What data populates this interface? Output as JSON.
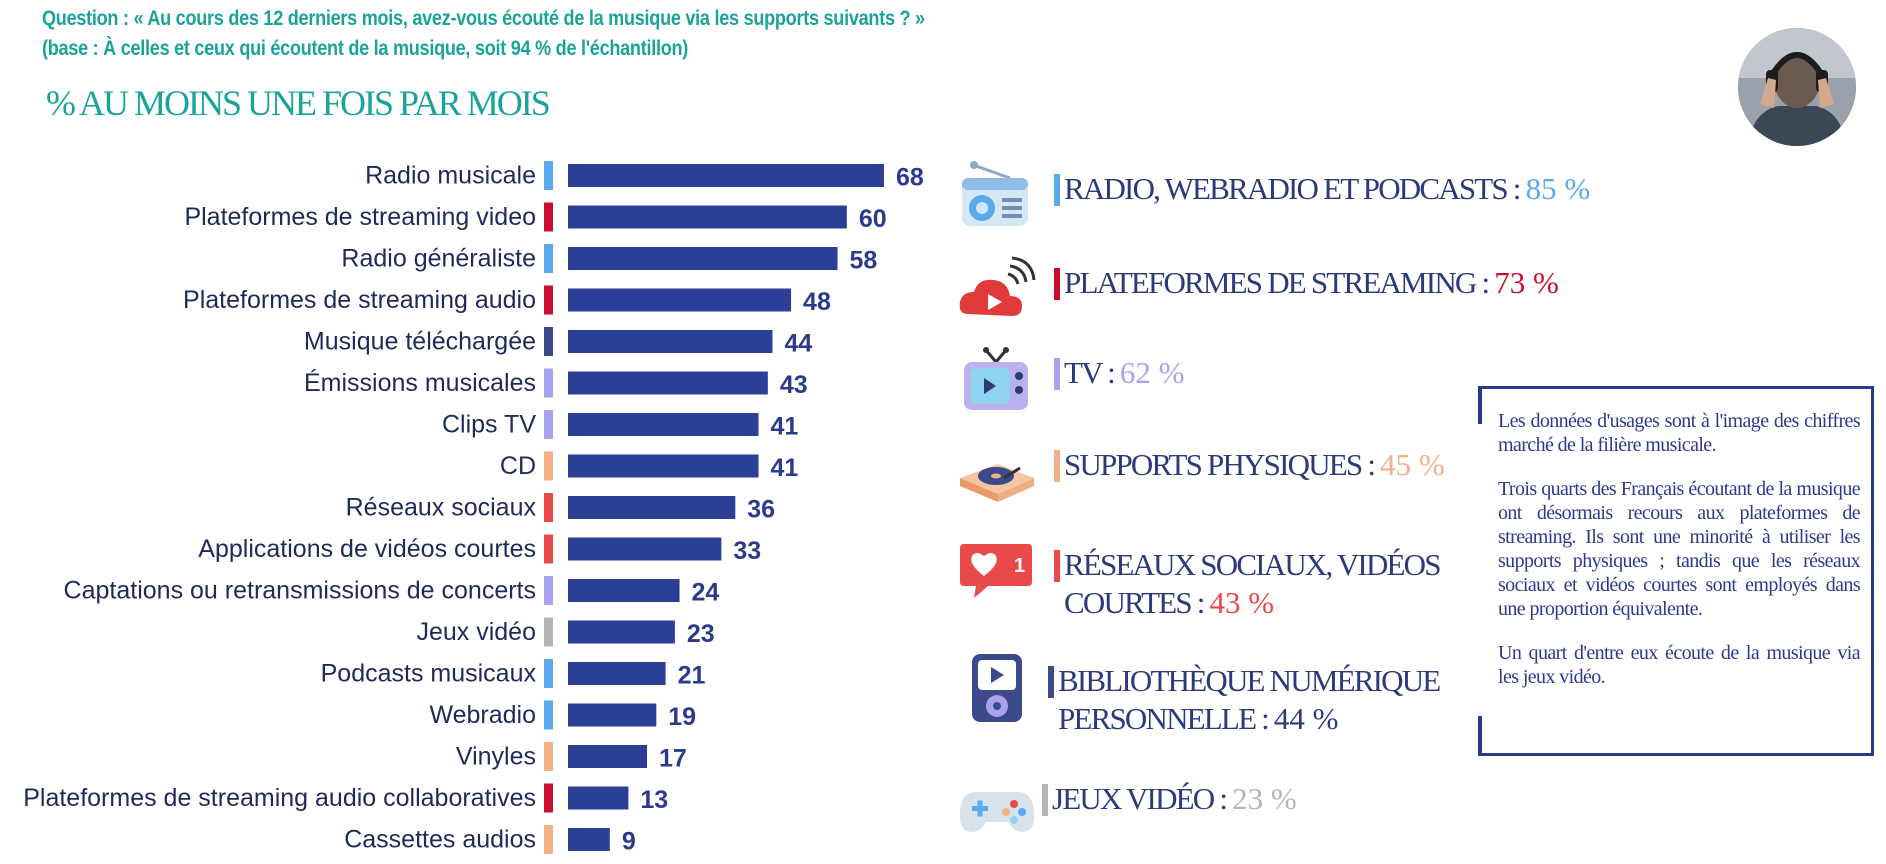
{
  "header": {
    "question_line1": "Question : « Au cours des 12 derniers mois, avez-vous écouté de la musique via les supports suivants ? »",
    "question_line2": "(base : À celles et ceux qui écoutent de la musique, soit 94 % de l'échantillon)",
    "subtitle": "% AU MOINS UNE FOIS PAR MOIS"
  },
  "avatar": {
    "icon": "person-with-headphones-photo"
  },
  "chart_data": {
    "type": "bar",
    "orientation": "horizontal",
    "title": "% AU MOINS UNE FOIS PAR MOIS",
    "categories": [
      "Radio musicale",
      "Plateformes de streaming video",
      "Radio généraliste",
      "Plateformes de streaming audio",
      "Musique téléchargée",
      "Émissions musicales",
      "Clips TV",
      "CD",
      "Réseaux sociaux",
      "Applications de vidéos courtes",
      "Captations ou retransmissions de concerts",
      "Jeux vidéo",
      "Podcasts musicaux",
      "Webradio",
      "Vinyles",
      "Plateformes de streaming audio collaboratives",
      "Cassettes audios"
    ],
    "values": [
      68,
      60,
      58,
      48,
      44,
      43,
      41,
      41,
      36,
      33,
      24,
      23,
      21,
      19,
      17,
      13,
      9
    ],
    "marker_colors": [
      "#5aa9ec",
      "#c8102e",
      "#5aa9ec",
      "#c8102e",
      "#3d4a8a",
      "#a9a3ee",
      "#a9a3ee",
      "#f4b088",
      "#e84a4a",
      "#e84a4a",
      "#a9a3ee",
      "#b5b5b5",
      "#5aa9ec",
      "#5aa9ec",
      "#f4b088",
      "#c8102e",
      "#f4b088"
    ],
    "bar_color": "#2b3f96",
    "xlim": [
      0,
      68
    ],
    "grid": false,
    "legend": "none"
  },
  "categories_panel": [
    {
      "label": "RADIO, WEBRADIO ET PODCASTS : ",
      "value": "85 %",
      "color": "#5aa9ec",
      "icon": "radio-icon"
    },
    {
      "label": "PLATEFORMES DE STREAMING : ",
      "value": "73 %",
      "color": "#c8102e",
      "icon": "streaming-cloud-icon"
    },
    {
      "label": "TV : ",
      "value": "62 %",
      "color": "#a9a3ee",
      "icon": "tv-icon"
    },
    {
      "label": "SUPPORTS PHYSIQUES : ",
      "value": "45 %",
      "color": "#f4b088",
      "icon": "turntable-icon"
    },
    {
      "label_line1": "RÉSEAUX SOCIAUX, VIDÉOS",
      "label_line2": "COURTES : ",
      "value": "43 %",
      "color": "#e84a4a",
      "icon": "like-notification-icon"
    },
    {
      "label_line1": "BIBLIOTHÈQUE NUMÉRIQUE",
      "label_line2": "PERSONNELLE : ",
      "value": "44 %",
      "color": "#3d4a8a",
      "value_color": "#2a3a7a",
      "icon": "media-player-icon"
    },
    {
      "label": "JEUX VIDÉO : ",
      "value": "23 %",
      "color": "#b5b5b5",
      "icon": "gamepad-icon"
    }
  ],
  "note": {
    "p1": "Les données d'usages sont à l'image des chiffres marché de la filière musicale.",
    "p2": "Trois quarts des Français écoutant de la musique ont désormais recours aux plateformes de streaming. Ils sont une minorité à utiliser les supports physiques ; tandis que les réseaux sociaux et vidéos courtes sont employés dans une proportion équivalente.",
    "p3": "Un quart d'entre eux écoute de la musique via les jeux vidéo."
  }
}
